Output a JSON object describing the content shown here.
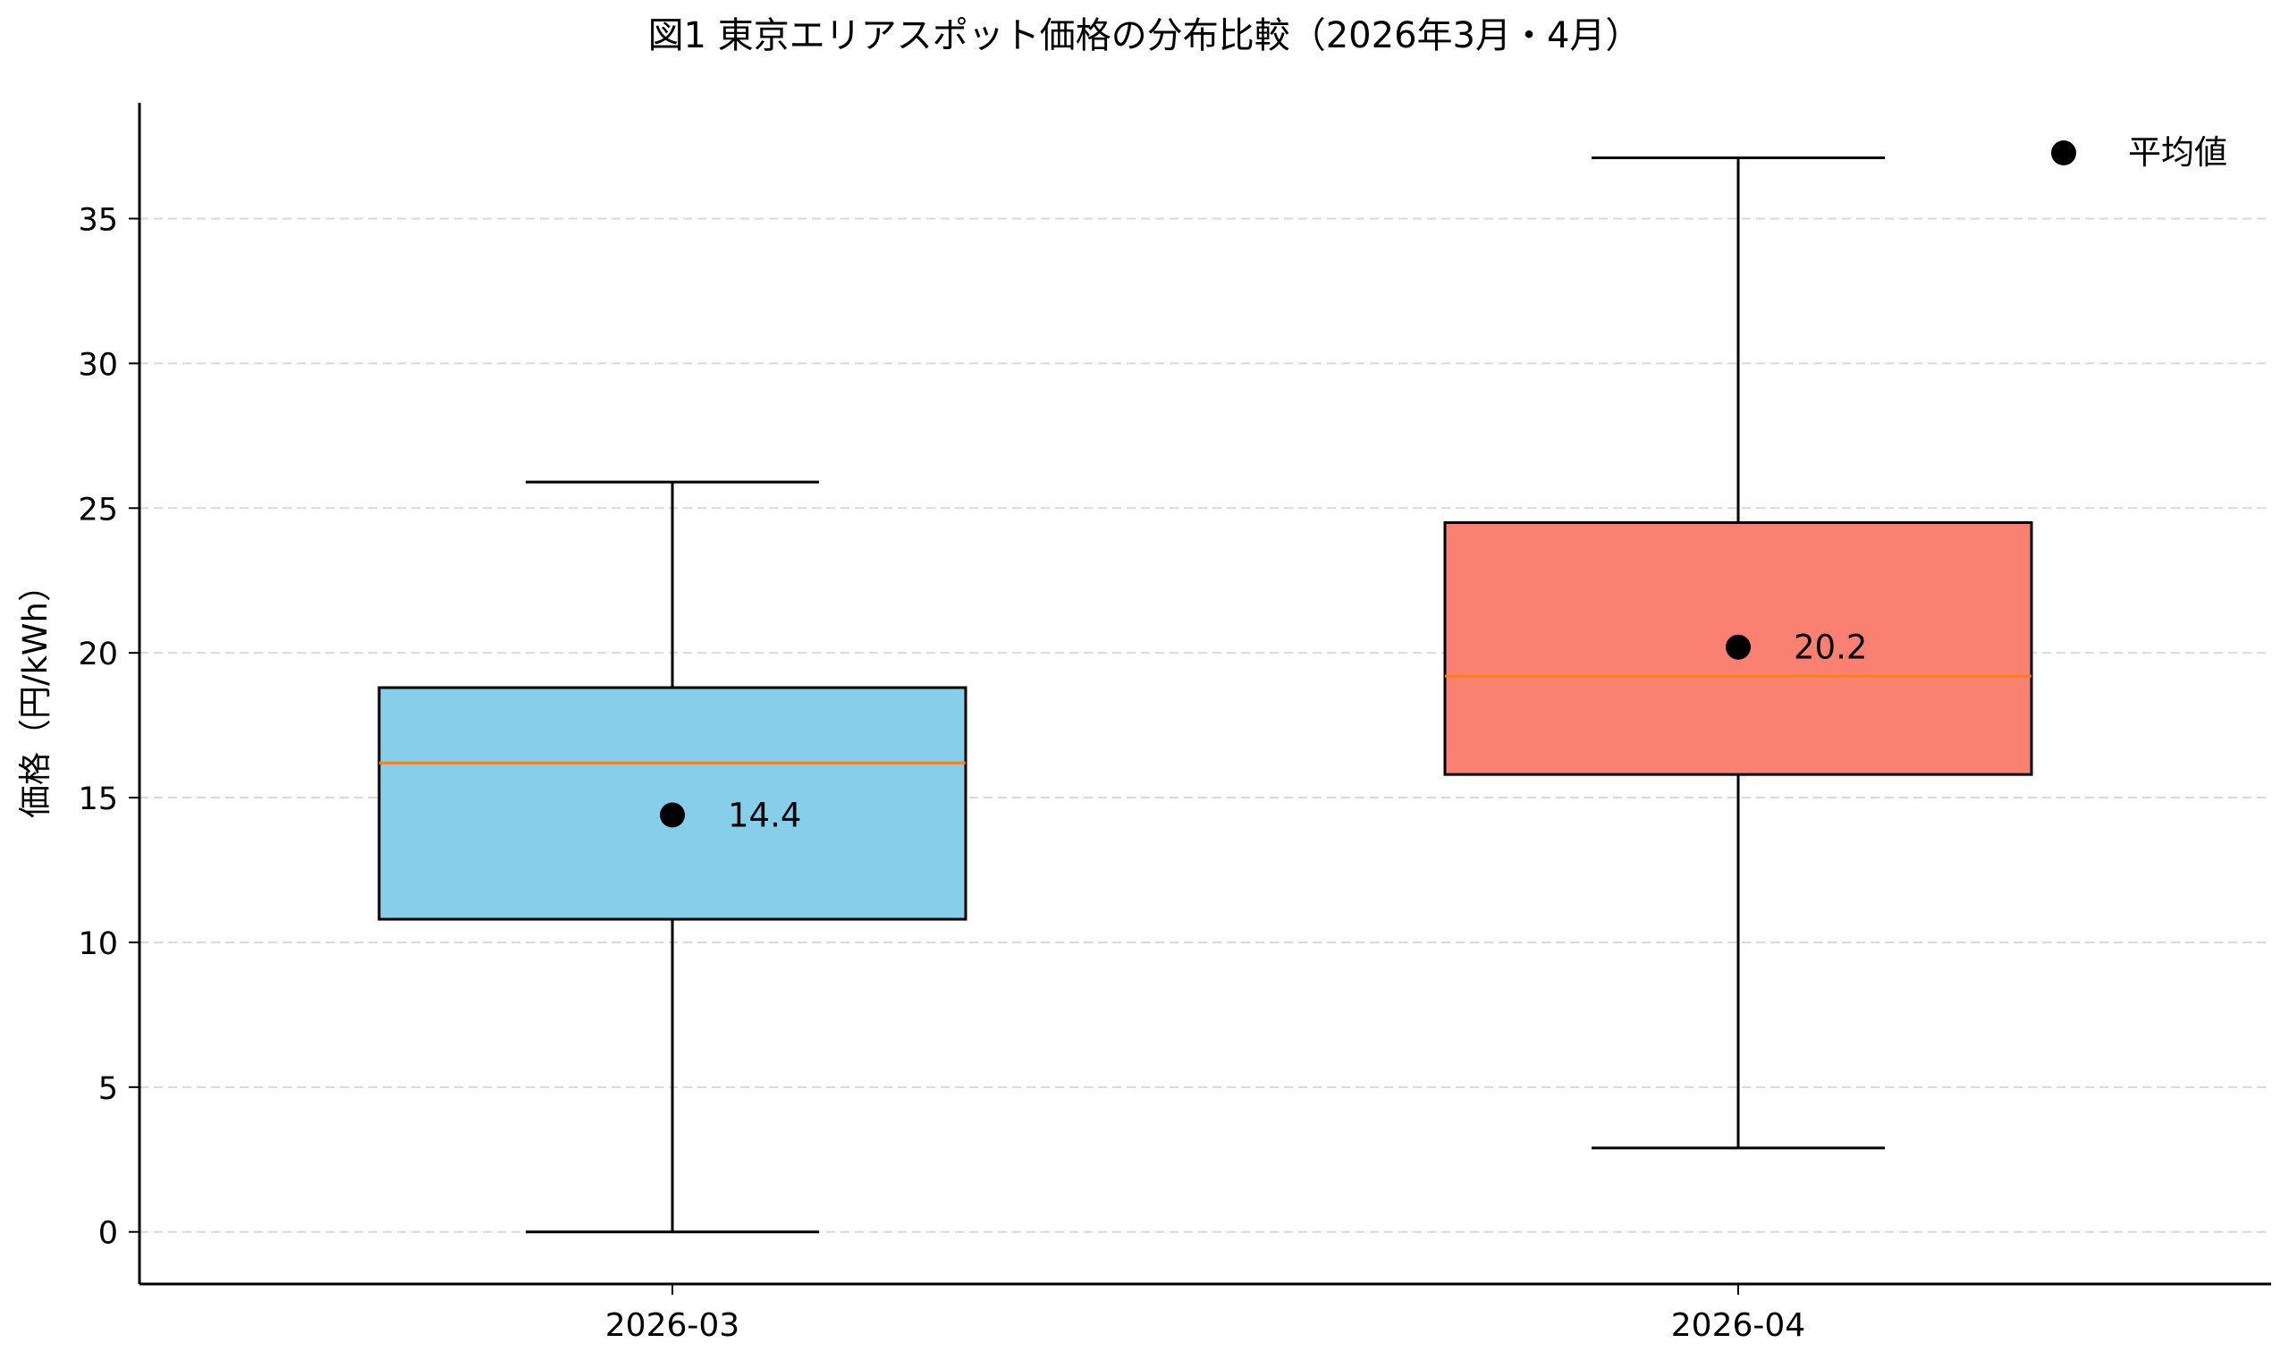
{
  "chart_data": {
    "type": "boxplot",
    "title": "図1 東京エリアスポット価格の分布比較（2026年3月・4月）",
    "xlabel": "",
    "ylabel": "価格（円/kWh）",
    "ylim": [
      -1.8,
      39
    ],
    "yticks": [
      0,
      5,
      10,
      15,
      20,
      25,
      30,
      35
    ],
    "grid": "y-dashed",
    "legend": {
      "placement": "top-right",
      "entries": [
        {
          "label": "平均値",
          "marker": "circle",
          "color": "#000000"
        }
      ]
    },
    "categories": [
      "2026-03",
      "2026-04"
    ],
    "series": [
      {
        "category": "2026-03",
        "whisker_low": 0.0,
        "q1": 10.8,
        "median": 16.2,
        "q3": 18.8,
        "whisker_high": 25.9,
        "mean": 14.4,
        "mean_label": "14.4",
        "color": "#87ceeb"
      },
      {
        "category": "2026-04",
        "whisker_low": 2.9,
        "q1": 15.8,
        "median": 19.2,
        "q3": 24.5,
        "whisker_high": 37.1,
        "mean": 20.2,
        "mean_label": "20.2",
        "color": "#fa8072"
      }
    ],
    "colors": {
      "median_line": "#ff7f0e",
      "box_edge": "#000000",
      "grid": "#d9d9d9",
      "mean_marker": "#000000"
    }
  }
}
